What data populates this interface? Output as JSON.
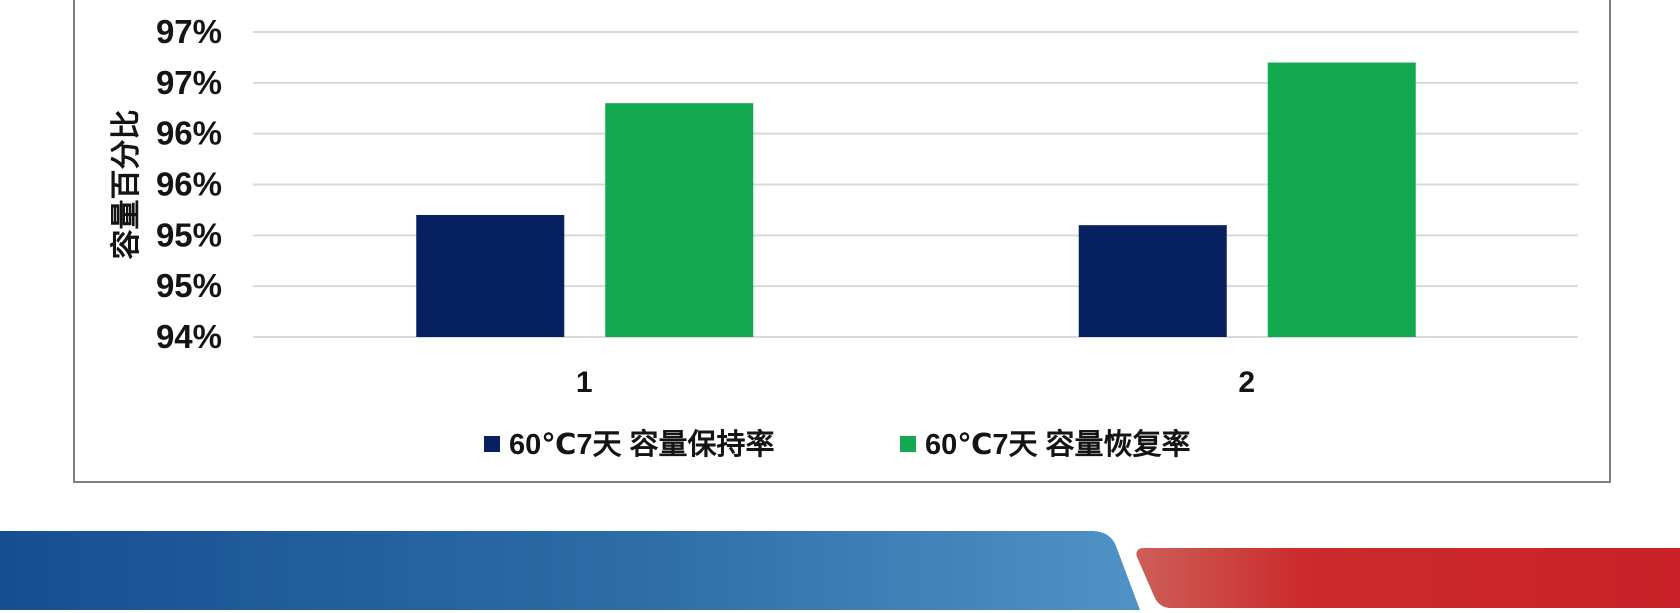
{
  "chart_data": {
    "type": "bar",
    "title": "",
    "ylabel": "容量百分比",
    "xlabel": "",
    "categories": [
      "1",
      "2"
    ],
    "series": [
      {
        "name": "60℃7天 容量保持率",
        "color": "#062060",
        "values": [
          95.2,
          95.1
        ]
      },
      {
        "name": "60℃7天 容量恢复率",
        "color": "#13a950",
        "values": [
          96.3,
          96.7
        ]
      }
    ],
    "ylim": [
      94,
      97
    ],
    "ytick_step": 0.5,
    "ytick_labels_top_to_bottom": [
      "97%",
      "97%",
      "96%",
      "96%",
      "95%",
      "95%",
      "94%"
    ],
    "grid": true,
    "legend_position": "bottom-center",
    "gridline_color": "#d9d9d9",
    "frame_border_color": "#7f7f7f",
    "text_color": "#141414"
  },
  "banner": {
    "blue_gradient": [
      "#164e93",
      "#2d6ca7",
      "#4f93c6"
    ],
    "red_gradient": [
      "#cd5f58",
      "#cb2b2c",
      "#c92127"
    ]
  }
}
